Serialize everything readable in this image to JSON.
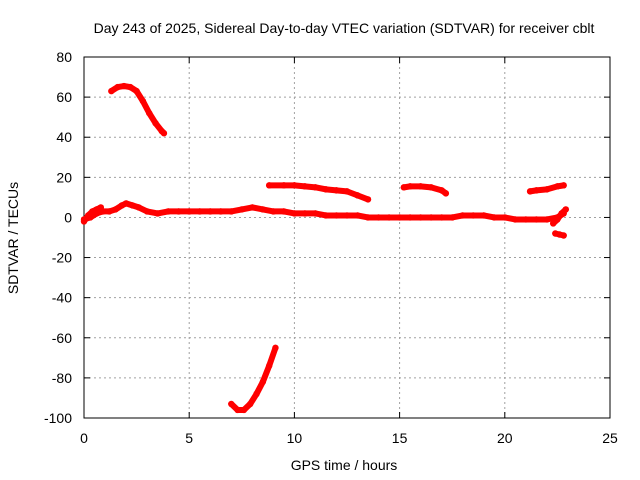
{
  "chart_data": {
    "type": "scatter",
    "title": "Day 243 of 2025, Sidereal Day-to-day VTEC variation (SDTVAR) for receiver cblt",
    "xlabel": "GPS time / hours",
    "ylabel": "SDTVAR / TECUs",
    "xlim": [
      0,
      25
    ],
    "ylim": [
      -100,
      80
    ],
    "xticks": [
      0,
      5,
      10,
      15,
      20,
      25
    ],
    "yticks": [
      -100,
      -80,
      -60,
      -40,
      -20,
      0,
      20,
      40,
      60,
      80
    ],
    "grid": true,
    "series_color": "#ff0000",
    "series": [
      {
        "name": "arc-main",
        "x": [
          0,
          0.3,
          0.6,
          0.9,
          1.2,
          1.5,
          1.8,
          2.0,
          2.3,
          2.6,
          3.0,
          3.5,
          4.0,
          4.5,
          5.0,
          5.5,
          6.0,
          6.5,
          7.0,
          7.5,
          8.0,
          8.5,
          9.0,
          9.5,
          10.0,
          10.5,
          11.0,
          11.5,
          12.0,
          12.5,
          13.0,
          13.5,
          14.0,
          14.5,
          15.0,
          15.5,
          16.0,
          16.5,
          17.0,
          17.5,
          18.0,
          18.5,
          19.0,
          19.5,
          20.0,
          20.5,
          21.0,
          21.5,
          22.0,
          22.5,
          22.8
        ],
        "y": [
          -1,
          0,
          2,
          3,
          3,
          4,
          6,
          7,
          6,
          5,
          3,
          2,
          3,
          3,
          3,
          3,
          3,
          3,
          3,
          4,
          5,
          4,
          3,
          3,
          2,
          2,
          2,
          1,
          1,
          1,
          1,
          0,
          0,
          0,
          0,
          0,
          0,
          0,
          0,
          0,
          1,
          1,
          1,
          0,
          0,
          -1,
          -1,
          -1,
          -1,
          0,
          2
        ]
      },
      {
        "name": "arc-early-spike",
        "x": [
          0,
          0.2,
          0.4,
          0.6,
          0.8
        ],
        "y": [
          -2,
          1,
          3,
          4,
          5
        ]
      },
      {
        "name": "arc-high",
        "x": [
          1.3,
          1.6,
          1.9,
          2.2,
          2.5,
          2.8,
          3.1,
          3.4,
          3.7,
          3.8
        ],
        "y": [
          63,
          65,
          65.5,
          65,
          63,
          58,
          52,
          47,
          43,
          42
        ]
      },
      {
        "name": "arc-low",
        "x": [
          7.0,
          7.3,
          7.6,
          7.9,
          8.2,
          8.5,
          8.8,
          9.1
        ],
        "y": [
          -93,
          -96,
          -96,
          -93,
          -88,
          -82,
          -74,
          -65
        ]
      },
      {
        "name": "arc-15",
        "x": [
          8.8,
          9.5,
          10.0,
          10.5,
          11.0,
          11.5,
          12.0,
          12.5,
          13.0,
          13.5
        ],
        "y": [
          16,
          16,
          16,
          15.5,
          15,
          14,
          13.5,
          13,
          11,
          9
        ]
      },
      {
        "name": "arc-15b",
        "x": [
          15.2,
          15.5,
          16.0,
          16.5,
          17.0,
          17.2
        ],
        "y": [
          15,
          15.5,
          15.5,
          15,
          13.5,
          12
        ]
      },
      {
        "name": "arc-right-high",
        "x": [
          21.2,
          21.5,
          22.0,
          22.5,
          22.8
        ],
        "y": [
          13,
          13.5,
          14,
          15.5,
          16
        ]
      },
      {
        "name": "arc-right-low",
        "x": [
          22.4,
          22.6,
          22.8
        ],
        "y": [
          -8,
          -8.5,
          -9
        ]
      },
      {
        "name": "arc-right-tail",
        "x": [
          22.3,
          22.5,
          22.7,
          22.9
        ],
        "y": [
          -3,
          -1,
          2,
          4
        ]
      }
    ]
  }
}
